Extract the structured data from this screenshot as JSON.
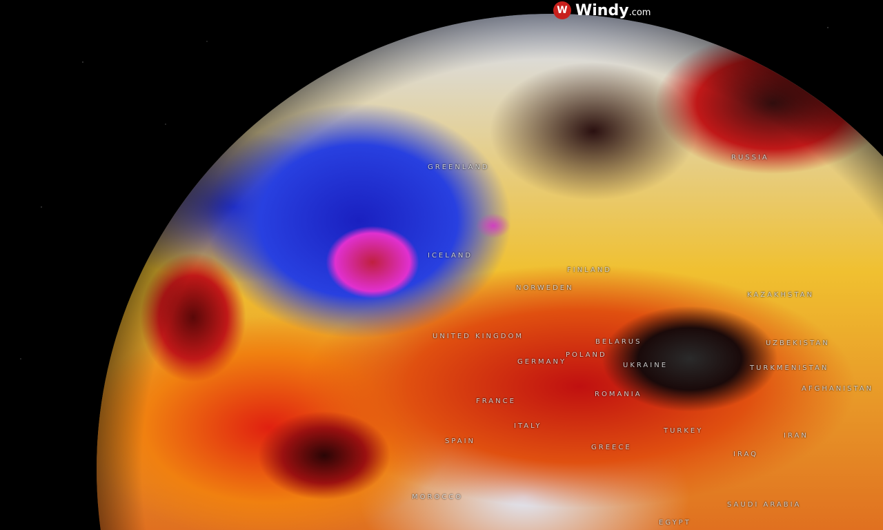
{
  "logo": {
    "name": "Windy",
    "suffix": ".com",
    "icon": "windy-logo-icon",
    "color": "#c8201c"
  },
  "labels": {
    "greenland": "GREENLAND",
    "russia": "RUSSIA",
    "iceland": "ICELAND",
    "finland": "FINLAND",
    "norweden": "NORWEDEN",
    "united_kingdom": "UNITED KINGDOM",
    "kazakhstan": "KAZAKHSTAN",
    "belarus": "BELARUS",
    "poland": "POLAND",
    "uzbekistan": "UZBEKISTAN",
    "ukraine": "UKRAINE",
    "turkmenistan": "TURKMENISTAN",
    "germany": "GERMANY",
    "romania": "ROMANIA",
    "afghanistan": "AFGHANISTAN",
    "france": "FRANCE",
    "spain": "SPAIN",
    "italy": "ITALY",
    "turkey": "TURKEY",
    "iran": "IRAN",
    "greece": "GREECE",
    "iraq": "IRAQ",
    "morocco": "MOROCCO",
    "saudi_arabia": "SAUDI ARABIA",
    "egypt": "EGYPT"
  }
}
